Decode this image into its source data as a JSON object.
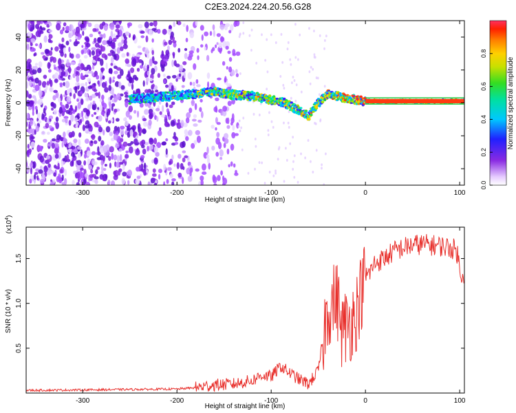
{
  "page_title": "C2E3.2024.224.20.56.G28",
  "chart_data": [
    {
      "type": "heatmap",
      "title": "C2E3.2024.224.20.56.G28",
      "xlabel": "Height of straight line (km)",
      "ylabel": "Frequency (Hz)",
      "xlim": [
        -360,
        105
      ],
      "ylim": [
        -50,
        50
      ],
      "xticks": [
        -300,
        -200,
        -100,
        0,
        100
      ],
      "yticks": [
        -40,
        -20,
        0,
        20,
        40
      ],
      "ridge_centerline": {
        "x": [
          -250,
          -230,
          -210,
          -190,
          -170,
          -160,
          -140,
          -120,
          -100,
          -85,
          -70,
          -60,
          -55,
          -50,
          -45,
          -40,
          -30,
          -20,
          -10,
          0,
          10,
          30,
          60,
          90,
          105
        ],
        "y": [
          2,
          3,
          4,
          5,
          6,
          7,
          5,
          4,
          2,
          0,
          -5,
          -8,
          -4,
          0,
          3,
          5,
          4,
          3,
          2,
          1,
          1,
          1,
          1,
          1,
          1
        ]
      },
      "colorbar": {
        "label": "Normalized spectral amplitude",
        "ticks": [
          "0.0",
          "0.2",
          "0.4",
          "0.6",
          "0.8"
        ],
        "range": [
          0,
          1
        ]
      }
    },
    {
      "type": "line",
      "xlabel": "Height of straight line (km)",
      "ylabel": "SNR (10 * v/v)",
      "exponent_label": "(x10",
      "exponent_sup": "4",
      "exponent_close": ")",
      "xlim": [
        -360,
        105
      ],
      "ylim": [
        0,
        1.85
      ],
      "xticks": [
        -300,
        -200,
        -100,
        0,
        100
      ],
      "yticks": [
        "0.5",
        "1.0",
        "1.5"
      ],
      "ytick_values": [
        0.5,
        1.0,
        1.5
      ],
      "color": "#e8302c",
      "series": [
        {
          "x": [
            -360,
            -300,
            -250,
            -200,
            -180,
            -160,
            -140,
            -120,
            -110,
            -100,
            -90,
            -80,
            -70,
            -60,
            -55,
            -50,
            -45,
            -40,
            -35,
            -30,
            -28,
            -25,
            -20,
            -15,
            -10,
            -5,
            0,
            5,
            10,
            20,
            30,
            40,
            50,
            60,
            70,
            80,
            90,
            95,
            98,
            100,
            105
          ],
          "y": [
            0.03,
            0.035,
            0.04,
            0.045,
            0.06,
            0.09,
            0.1,
            0.14,
            0.2,
            0.18,
            0.3,
            0.22,
            0.15,
            0.1,
            0.18,
            0.25,
            0.6,
            0.95,
            1.0,
            1.05,
            0.9,
            0.7,
            0.75,
            0.8,
            0.9,
            1.1,
            1.3,
            1.35,
            1.45,
            1.5,
            1.58,
            1.62,
            1.65,
            1.66,
            1.65,
            1.64,
            1.62,
            1.6,
            1.55,
            1.35,
            1.33
          ]
        }
      ]
    }
  ]
}
